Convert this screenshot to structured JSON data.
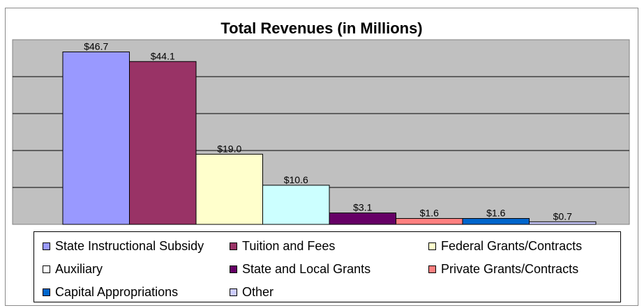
{
  "chart_data": {
    "type": "bar",
    "title": "Total Revenues (in Millions)",
    "categories": [
      "State Instructional Subsidy",
      "Tuition and Fees",
      "Federal Grants/Contracts",
      "Auxiliary",
      "State and Local Grants",
      "Private Grants/Contracts",
      "Capital Appropriations",
      "Other"
    ],
    "values": [
      46.7,
      44.1,
      19.0,
      10.6,
      3.1,
      1.6,
      1.6,
      0.7
    ],
    "data_labels": [
      "$46.7",
      "$44.1",
      "$19.0",
      "$10.6",
      "$3.1",
      "$1.6",
      "$1.6",
      "$0.7"
    ],
    "ylim": [
      0,
      50
    ],
    "grid": true,
    "legend_position": "bottom",
    "plot_background": "#c0c0c0",
    "series_colors": [
      "#9999ff",
      "#993366",
      "#ffffcc",
      "#ccffff",
      "#660066",
      "#ff8080",
      "#0066cc",
      "#ccccff"
    ]
  },
  "legend": {
    "items": [
      {
        "label": "State Instructional Subsidy",
        "color": "#9999ff"
      },
      {
        "label": "Tuition and Fees",
        "color": "#993366"
      },
      {
        "label": "Federal Grants/Contracts",
        "color": "#ffffcc"
      },
      {
        "label": "Auxiliary",
        "color": "#ffffff"
      },
      {
        "label": "State and Local Grants",
        "color": "#660066"
      },
      {
        "label": "Private Grants/Contracts",
        "color": "#ff8080"
      },
      {
        "label": "Capital Appropriations",
        "color": "#0066cc"
      },
      {
        "label": "Other",
        "color": "#ccccff"
      }
    ]
  }
}
